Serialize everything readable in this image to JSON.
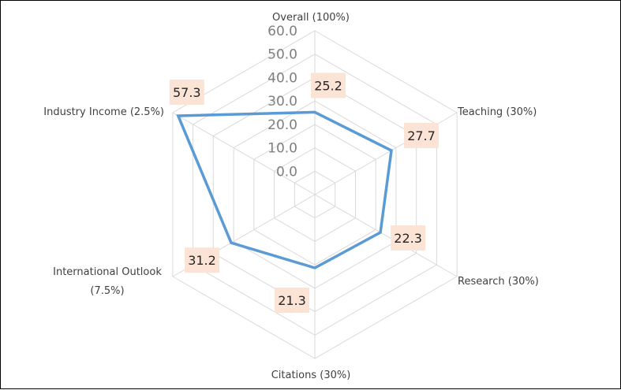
{
  "chart_data": {
    "type": "radar",
    "categories": [
      "Overall (100%)",
      "Teaching (30%)",
      "Research (30%)",
      "Citations (30%)",
      "International Outlook (7.5%)",
      "Industry Income (2.5%)"
    ],
    "category_label_lines": [
      [
        "Overall (100%)"
      ],
      [
        "Teaching (30%)"
      ],
      [
        "Research (30%)"
      ],
      [
        "Citations (30%)"
      ],
      [
        "International Outlook",
        "(7.5%)"
      ],
      [
        "Industry Income (2.5%)"
      ]
    ],
    "values": [
      25.2,
      27.7,
      22.3,
      21.3,
      31.2,
      57.3
    ],
    "data_labels": [
      "25.2",
      "27.7",
      "22.3",
      "21.3",
      "31.2",
      "57.3"
    ],
    "ticks": [
      "0.0",
      "10.0",
      "20.0",
      "30.0",
      "40.0",
      "50.0",
      "60.0"
    ],
    "rmin": -10,
    "rmax": 60,
    "grid": true,
    "legend": "none",
    "colors": {
      "series_line": "#5b9bd5",
      "grid": "#d9d9d9",
      "label_box": "#fbe3d6",
      "label_text": "#262626",
      "tick_text": "#7f7f7f",
      "category_text": "#404040"
    }
  }
}
